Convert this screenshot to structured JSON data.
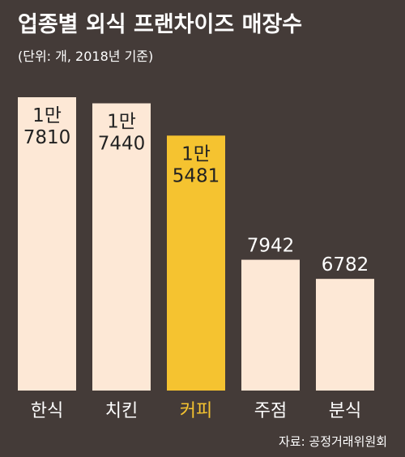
{
  "chart_data": {
    "type": "bar",
    "title": "업종별 외식 프랜차이즈 매장수",
    "subtitle": "(단위: 개, 2018년 기준)",
    "categories": [
      "한식",
      "치킨",
      "커피",
      "주점",
      "분식"
    ],
    "values": [
      17810,
      17440,
      15481,
      7942,
      6782
    ],
    "value_labels": [
      [
        "1만",
        "7810"
      ],
      [
        "1만",
        "7440"
      ],
      [
        "1만",
        "5481"
      ],
      [
        "7942"
      ],
      [
        "6782"
      ]
    ],
    "highlight_index": 2,
    "source": "자료: 공정거래위원회",
    "ylim": [
      0,
      17810
    ],
    "legend": "none",
    "grid": false,
    "colors": {
      "background": "#443b38",
      "bar": "#fde8d6",
      "highlight_bar": "#f5c330",
      "text": "#ffffff",
      "highlight_text": "#f5c330",
      "value_text": "#222222"
    }
  }
}
